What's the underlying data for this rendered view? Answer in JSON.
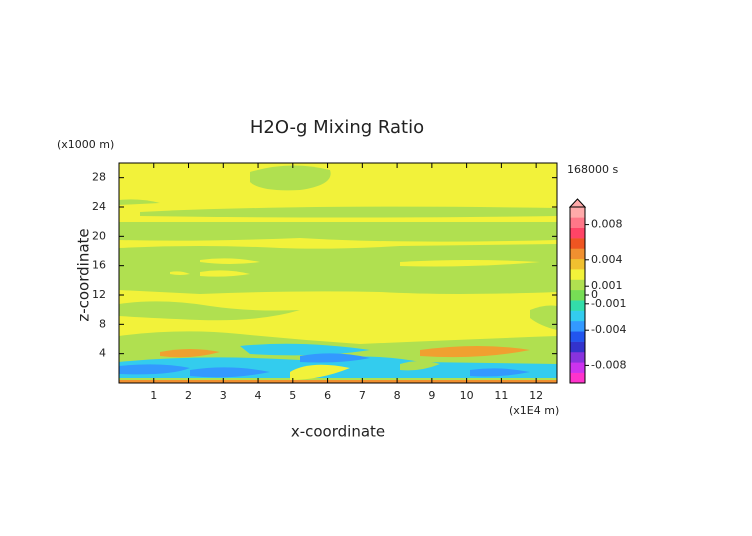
{
  "chart_data": {
    "type": "contour",
    "title": "H2O-g Mixing Ratio",
    "x_label": "x-coordinate",
    "y_label": "z-coordinate",
    "x_unit": "(x1E4 m)",
    "y_unit": "(x1000 m)",
    "time_label": "168000 s",
    "xlim": [
      0,
      12.6
    ],
    "xticks": [
      1,
      2,
      3,
      4,
      5,
      6,
      7,
      8,
      9,
      10,
      11,
      12
    ],
    "ylim": [
      0,
      30
    ],
    "yticks": [
      4,
      8,
      12,
      16,
      20,
      24,
      28
    ],
    "clim": [
      -0.01,
      0.01
    ],
    "colorbar_ticks": [
      0.008,
      0.004,
      0.001,
      0,
      -0.001,
      -0.004,
      -0.008
    ],
    "colorscale": [
      "#ff33cc",
      "#cc33ee",
      "#8833dd",
      "#3333cc",
      "#2255ee",
      "#3399ff",
      "#33ccee",
      "#33ddaa",
      "#77dd55",
      "#b0e050",
      "#f2f23a",
      "#f0c030",
      "#f09030",
      "#ee5522",
      "#ff4466",
      "#ff7788",
      "#ffaaaa"
    ]
  }
}
